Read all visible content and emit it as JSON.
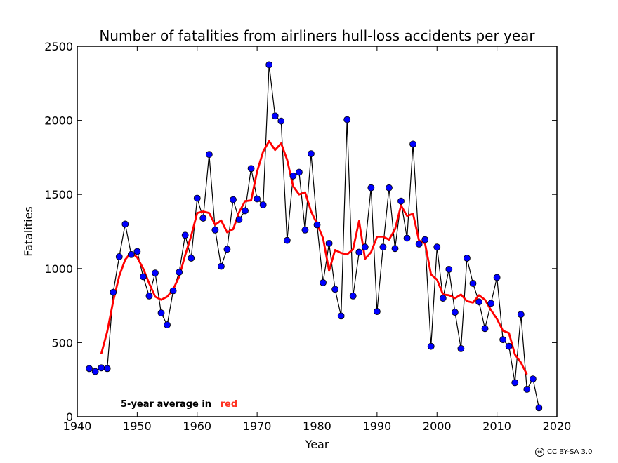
{
  "chart_data": {
    "type": "line",
    "title": "Number of fatalities from airliners hull-loss accidents per year",
    "xlabel": "Year",
    "ylabel": "Fatalities",
    "xlim": [
      1940,
      2020
    ],
    "ylim": [
      0,
      2500
    ],
    "xticks": [
      1940,
      1950,
      1960,
      1970,
      1980,
      1990,
      2000,
      2010,
      2020
    ],
    "yticks": [
      0,
      500,
      1000,
      1500,
      2000,
      2500
    ],
    "grid": false,
    "series": [
      {
        "style": "line-with-markers",
        "line_color": "#000000",
        "marker_color": "#0000ff",
        "x": [
          1942,
          1943,
          1944,
          1945,
          1946,
          1947,
          1948,
          1949,
          1950,
          1951,
          1952,
          1953,
          1954,
          1955,
          1956,
          1957,
          1958,
          1959,
          1960,
          1961,
          1962,
          1963,
          1964,
          1965,
          1966,
          1967,
          1968,
          1969,
          1970,
          1971,
          1972,
          1973,
          1974,
          1975,
          1976,
          1977,
          1978,
          1979,
          1980,
          1981,
          1982,
          1983,
          1984,
          1985,
          1986,
          1987,
          1988,
          1989,
          1990,
          1991,
          1992,
          1993,
          1994,
          1995,
          1996,
          1997,
          1998,
          1999,
          2000,
          2001,
          2002,
          2003,
          2004,
          2005,
          2006,
          2007,
          2008,
          2009,
          2010,
          2011,
          2012,
          2013,
          2014,
          2015,
          2016,
          2017
        ],
        "values": [
          325,
          305,
          330,
          325,
          840,
          1080,
          1300,
          1095,
          1115,
          945,
          815,
          970,
          700,
          620,
          850,
          975,
          1225,
          1070,
          1475,
          1340,
          1770,
          1260,
          1015,
          1130,
          1465,
          1330,
          1390,
          1675,
          1470,
          1430,
          2375,
          2030,
          1995,
          1190,
          1625,
          1650,
          1260,
          1775,
          1295,
          905,
          1170,
          860,
          680,
          2005,
          815,
          1110,
          1145,
          1545,
          710,
          1145,
          1545,
          1135,
          1455,
          1205,
          1840,
          1165,
          1195,
          475,
          1145,
          800,
          995,
          705,
          460,
          1070,
          900,
          775,
          595,
          765,
          940,
          520,
          475,
          230,
          690,
          185,
          255,
          60
        ]
      },
      {
        "style": "line",
        "line_color": "#ff0000",
        "x": [
          1944,
          1945,
          1946,
          1947,
          1948,
          1949,
          1950,
          1951,
          1952,
          1953,
          1954,
          1955,
          1956,
          1957,
          1958,
          1959,
          1960,
          1961,
          1962,
          1963,
          1964,
          1965,
          1966,
          1967,
          1968,
          1969,
          1970,
          1971,
          1972,
          1973,
          1974,
          1975,
          1976,
          1977,
          1978,
          1979,
          1980,
          1981,
          1982,
          1983,
          1984,
          1985,
          1986,
          1987,
          1988,
          1989,
          1990,
          1991,
          1992,
          1993,
          1994,
          1995,
          1996,
          1997,
          1998,
          1999,
          2000,
          2001,
          2002,
          2003,
          2004,
          2005,
          2006,
          2007,
          2008,
          2009,
          2010,
          2011,
          2012,
          2013,
          2014,
          2015
        ],
        "values": [
          425,
          575,
          780,
          950,
          1060,
          1110,
          1075,
          1000,
          900,
          810,
          790,
          810,
          860,
          945,
          1090,
          1220,
          1375,
          1385,
          1375,
          1295,
          1325,
          1245,
          1265,
          1380,
          1455,
          1460,
          1655,
          1790,
          1860,
          1800,
          1845,
          1735,
          1555,
          1500,
          1515,
          1385,
          1300,
          1205,
          985,
          1125,
          1105,
          1095,
          1130,
          1320,
          1065,
          1110,
          1215,
          1215,
          1195,
          1265,
          1425,
          1355,
          1370,
          1190,
          1170,
          960,
          925,
          825,
          820,
          800,
          825,
          780,
          770,
          820,
          790,
          720,
          660,
          580,
          565,
          420,
          365,
          285
        ]
      }
    ],
    "annotation": {
      "prefix": "5-year average in",
      "highlight": "red",
      "highlight_color": "#ff3322"
    },
    "license": "CC BY-SA 3.0"
  }
}
